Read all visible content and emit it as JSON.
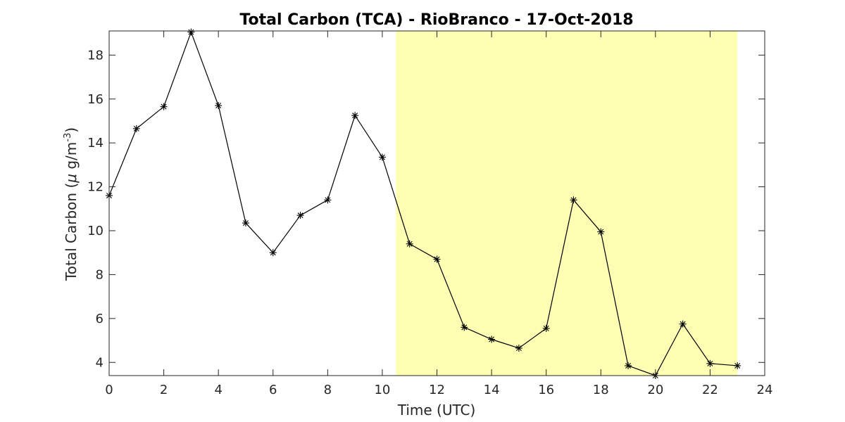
{
  "chart_data": {
    "type": "line",
    "title": "Total Carbon (TCA) - RioBranco - 17-Oct-2018",
    "xlabel": "Time (UTC)",
    "ylabel": {
      "main": "Total Carbon (",
      "mu": "μ",
      "unit": " g/m",
      "exp": "-3",
      "close": ")"
    },
    "xlim": [
      0,
      24
    ],
    "ylim": [
      3.4,
      19.1
    ],
    "xticks": [
      0,
      2,
      4,
      6,
      8,
      10,
      12,
      14,
      16,
      18,
      20,
      22,
      24
    ],
    "yticks": [
      4,
      6,
      8,
      10,
      12,
      14,
      16,
      18
    ],
    "highlight": {
      "x_start": 10.5,
      "x_end": 23,
      "color": "#ffffb3"
    },
    "grid": false,
    "series": [
      {
        "x": [
          0,
          1,
          2,
          3,
          4,
          5,
          6,
          7,
          8,
          9,
          10,
          11,
          12,
          13,
          14,
          15,
          16,
          17,
          18,
          19,
          20,
          21,
          22,
          23
        ],
        "y": [
          11.6,
          14.65,
          15.65,
          19.05,
          15.7,
          10.35,
          9.0,
          10.7,
          11.4,
          15.25,
          13.35,
          9.4,
          8.7,
          5.6,
          5.05,
          4.65,
          5.55,
          11.4,
          9.95,
          3.85,
          3.4,
          5.75,
          3.95,
          3.85
        ],
        "color": "#000000",
        "marker": "asterisk"
      }
    ]
  }
}
